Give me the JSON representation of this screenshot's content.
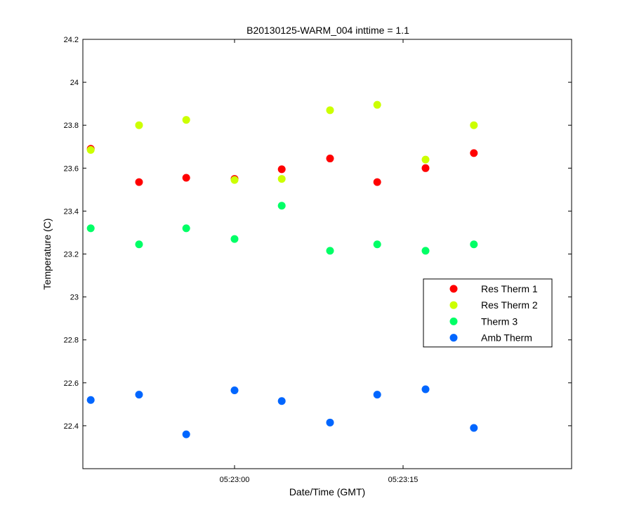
{
  "chart_data": {
    "type": "scatter",
    "title": "B20130125-WARM_004 inttime = 1.1",
    "xlabel": "Date/Time (GMT)",
    "ylabel": "Temperature (C)",
    "x_unit": "time of day (GMT)",
    "xlim": [
      "05:22:46.5",
      "05:23:30"
    ],
    "ylim": [
      22.2,
      24.2
    ],
    "yticks": [
      22.4,
      22.6,
      22.8,
      23,
      23.2,
      23.4,
      23.6,
      23.8,
      24,
      24.2
    ],
    "ytick_labels": [
      "22.4",
      "22.6",
      "22.8",
      "23",
      "23.2",
      "23.4",
      "23.6",
      "23.8",
      "24",
      "24.2"
    ],
    "xticks": [
      "05:23:00",
      "05:23:15"
    ],
    "xtick_labels": [
      "05:23:00",
      "05:23:15"
    ],
    "x": [
      "05:22:47.2",
      "05:22:51.5",
      "05:22:55.7",
      "05:23:00.0",
      "05:23:04.2",
      "05:23:08.5",
      "05:23:12.7",
      "05:23:17.0",
      "05:23:21.3"
    ],
    "series": [
      {
        "name": "Res Therm 1",
        "color": "#ff0000",
        "values": [
          23.69,
          23.535,
          23.555,
          23.55,
          23.595,
          23.645,
          23.535,
          23.6,
          23.67
        ]
      },
      {
        "name": "Res Therm 2",
        "color": "#ccff00",
        "values": [
          23.685,
          23.8,
          23.825,
          23.545,
          23.55,
          23.87,
          23.895,
          23.64,
          23.8
        ]
      },
      {
        "name": "Therm 3",
        "color": "#00ff66",
        "values": [
          23.32,
          23.245,
          23.32,
          23.27,
          23.425,
          23.215,
          23.245,
          23.215,
          23.245
        ]
      },
      {
        "name": "Amb Therm",
        "color": "#0066ff",
        "values": [
          22.52,
          22.545,
          22.36,
          22.565,
          22.515,
          22.415,
          22.545,
          22.57,
          22.39
        ]
      }
    ],
    "grid": false,
    "legend_position": "right"
  }
}
